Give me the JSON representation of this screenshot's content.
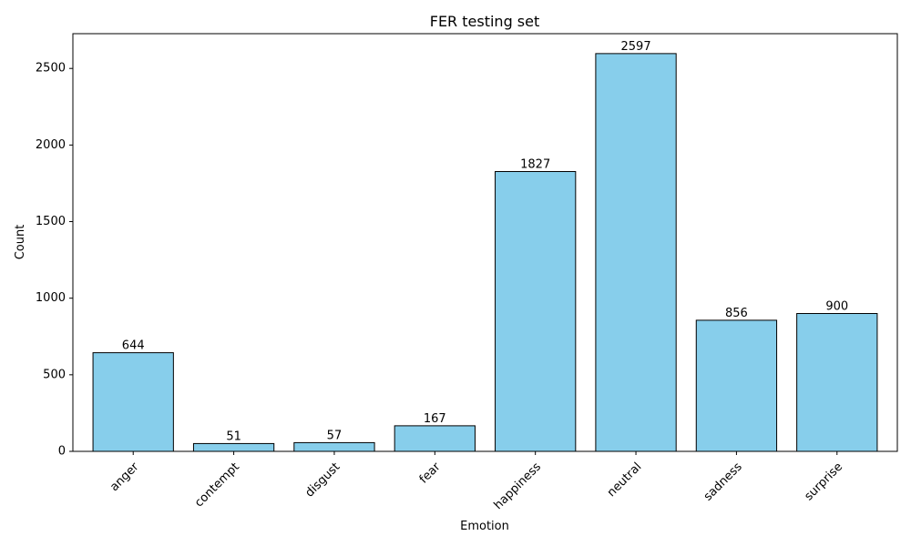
{
  "chart_data": {
    "type": "bar",
    "title": "FER testing set",
    "xlabel": "Emotion",
    "ylabel": "Count",
    "categories": [
      "anger",
      "contempt",
      "disgust",
      "fear",
      "happiness",
      "neutral",
      "sadness",
      "surprise"
    ],
    "values": [
      644,
      51,
      57,
      167,
      1827,
      2597,
      856,
      900
    ],
    "ylim": [
      0,
      2727
    ],
    "yticks": [
      0,
      500,
      1000,
      1500,
      2000,
      2500
    ],
    "grid": false,
    "bar_color": "#87ceeb",
    "bar_edge_color": "#000000",
    "xtick_rotation": 45
  }
}
